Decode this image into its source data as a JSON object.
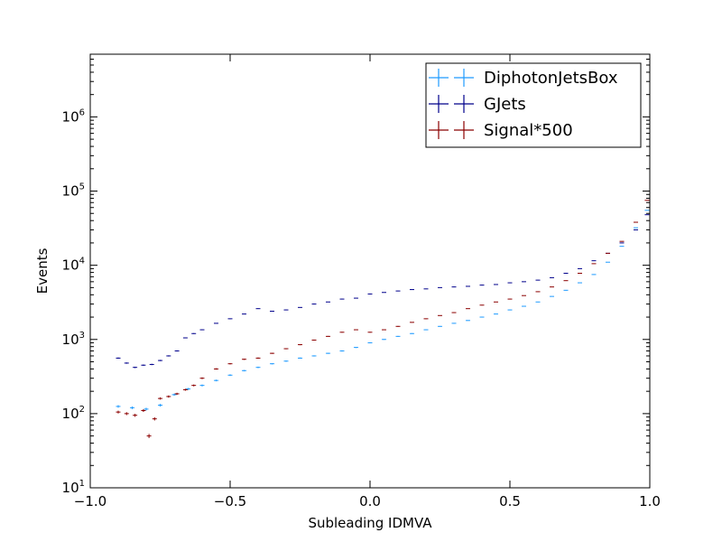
{
  "chart_data": {
    "type": "scatter",
    "title": "",
    "xlabel": "Subleading IDMVA",
    "ylabel": "Events",
    "xlim": [
      -1.0,
      1.0
    ],
    "ylim": [
      10,
      7000000
    ],
    "yscale": "log",
    "grid": false,
    "legend_position": "top-right",
    "x_ticks": [
      "−1.0",
      "−0.5",
      "0.0",
      "0.5",
      "1.0"
    ],
    "x_tick_values": [
      -1.0,
      -0.5,
      0.0,
      0.5,
      1.0
    ],
    "y_ticks": [
      {
        "base": "10",
        "exp": "1"
      },
      {
        "base": "10",
        "exp": "2"
      },
      {
        "base": "10",
        "exp": "3"
      },
      {
        "base": "10",
        "exp": "4"
      },
      {
        "base": "10",
        "exp": "5"
      },
      {
        "base": "10",
        "exp": "6"
      }
    ],
    "y_tick_values": [
      10,
      100,
      1000,
      10000,
      100000,
      1000000
    ],
    "series": [
      {
        "name": "DiphotonJetsBox",
        "color": "#1f9bff",
        "x": [
          -0.9,
          -0.85,
          -0.8,
          -0.75,
          -0.7,
          -0.65,
          -0.6,
          -0.55,
          -0.5,
          -0.45,
          -0.4,
          -0.35,
          -0.3,
          -0.25,
          -0.2,
          -0.15,
          -0.1,
          -0.05,
          0.0,
          0.05,
          0.1,
          0.15,
          0.2,
          0.25,
          0.3,
          0.35,
          0.4,
          0.45,
          0.5,
          0.55,
          0.6,
          0.65,
          0.7,
          0.75,
          0.8,
          0.85,
          0.9,
          0.95,
          0.99
        ],
        "y": [
          125,
          120,
          115,
          130,
          180,
          215,
          240,
          280,
          330,
          380,
          420,
          470,
          510,
          560,
          600,
          650,
          700,
          780,
          900,
          1000,
          1100,
          1200,
          1350,
          1500,
          1650,
          1800,
          2000,
          2200,
          2500,
          2800,
          3200,
          3800,
          4600,
          5800,
          7500,
          11000,
          18000,
          32000,
          55000
        ]
      },
      {
        "name": "GJets",
        "color": "#00008b",
        "x": [
          -0.9,
          -0.87,
          -0.84,
          -0.81,
          -0.78,
          -0.75,
          -0.72,
          -0.69,
          -0.66,
          -0.63,
          -0.6,
          -0.55,
          -0.5,
          -0.45,
          -0.4,
          -0.35,
          -0.3,
          -0.25,
          -0.2,
          -0.15,
          -0.1,
          -0.05,
          0.0,
          0.05,
          0.1,
          0.15,
          0.2,
          0.25,
          0.3,
          0.35,
          0.4,
          0.45,
          0.5,
          0.55,
          0.6,
          0.65,
          0.7,
          0.75,
          0.8,
          0.85,
          0.9,
          0.95,
          0.99
        ],
        "y": [
          560,
          480,
          420,
          450,
          460,
          520,
          600,
          700,
          1050,
          1200,
          1350,
          1650,
          1900,
          2200,
          2600,
          2400,
          2500,
          2700,
          3000,
          3200,
          3500,
          3600,
          4100,
          4300,
          4500,
          4700,
          4800,
          5000,
          5100,
          5200,
          5400,
          5500,
          5800,
          6000,
          6300,
          6800,
          7800,
          9000,
          11500,
          14500,
          20000,
          30000,
          48000
        ]
      },
      {
        "name": "Signal*500",
        "color": "#8b0000",
        "x": [
          -0.9,
          -0.87,
          -0.84,
          -0.81,
          -0.79,
          -0.77,
          -0.75,
          -0.72,
          -0.69,
          -0.66,
          -0.63,
          -0.6,
          -0.55,
          -0.5,
          -0.45,
          -0.4,
          -0.35,
          -0.3,
          -0.25,
          -0.2,
          -0.15,
          -0.1,
          -0.05,
          0.0,
          0.05,
          0.1,
          0.15,
          0.2,
          0.25,
          0.3,
          0.35,
          0.4,
          0.45,
          0.5,
          0.55,
          0.6,
          0.65,
          0.7,
          0.75,
          0.8,
          0.85,
          0.9,
          0.95,
          0.99
        ],
        "y": [
          105,
          100,
          95,
          110,
          50,
          85,
          160,
          170,
          185,
          210,
          240,
          300,
          400,
          470,
          540,
          560,
          650,
          750,
          850,
          980,
          1100,
          1250,
          1350,
          1250,
          1350,
          1500,
          1700,
          1900,
          2100,
          2300,
          2600,
          2900,
          3200,
          3500,
          3900,
          4400,
          5100,
          6200,
          7800,
          10500,
          14500,
          21000,
          38000,
          75000
        ]
      }
    ]
  }
}
